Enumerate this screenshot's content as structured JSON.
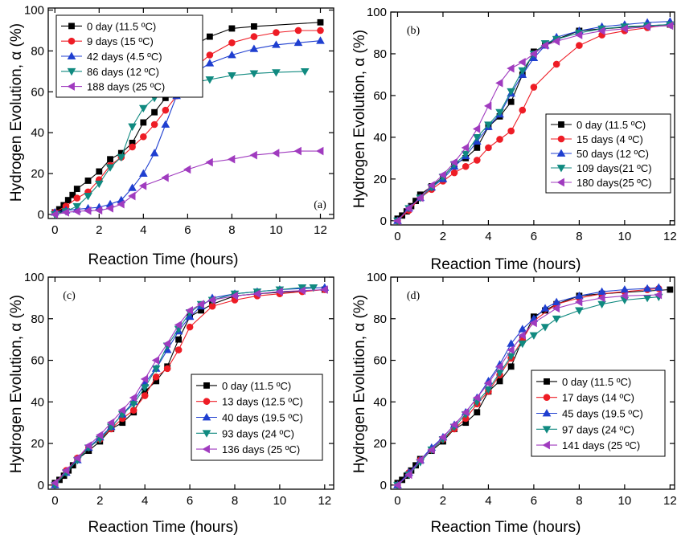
{
  "chart_data": [
    {
      "type": "line",
      "panel_label": "(a)",
      "xlabel": "Reaction Time (hours)",
      "ylabel": "Hydrogen Evolution, α (%)",
      "xlim": [
        -0.3,
        12.6
      ],
      "ylim": [
        -2,
        101
      ],
      "xticks": [
        0,
        2,
        4,
        6,
        8,
        10,
        12
      ],
      "yticks": [
        0,
        20,
        40,
        60,
        80,
        100
      ],
      "grid": false,
      "legend_position": "top-left",
      "series": [
        {
          "name": "0 day (11.5 ºC)",
          "color": "#000000",
          "marker": "square",
          "x": [
            0,
            0.2,
            0.4,
            0.6,
            0.8,
            1.0,
            1.5,
            2.0,
            2.5,
            3.0,
            3.5,
            4.0,
            4.5,
            5.0,
            5.5,
            6.0,
            6.5,
            7.0,
            8.0,
            9.0,
            12.0
          ],
          "y": [
            1,
            2.5,
            4.5,
            7,
            9.5,
            12.5,
            16.5,
            21,
            27,
            30,
            35,
            45,
            50,
            57,
            70,
            81,
            84,
            87,
            91,
            92,
            94
          ]
        },
        {
          "name": "9 days (15 ºC)",
          "color": "#ee1c25",
          "marker": "circle",
          "x": [
            0,
            0.5,
            1.0,
            1.5,
            2.0,
            2.5,
            3.0,
            3.5,
            4.0,
            4.5,
            5.0,
            5.5,
            6.0,
            7.0,
            8.0,
            9.0,
            10.0,
            11.0,
            12.0
          ],
          "y": [
            1,
            4,
            8,
            11,
            17,
            24,
            28,
            33,
            38,
            44,
            51,
            58,
            69,
            78,
            84,
            87,
            89,
            90,
            90
          ]
        },
        {
          "name": "42 days (4.5 ºC)",
          "color": "#1f3fd0",
          "marker": "triangle-up",
          "x": [
            0,
            0.5,
            1.0,
            1.5,
            2.0,
            2.5,
            3.0,
            3.5,
            4.0,
            4.5,
            5.0,
            5.5,
            6.0,
            7.0,
            8.0,
            9.0,
            10.0,
            11.0,
            12.0
          ],
          "y": [
            1,
            2,
            2.5,
            3,
            3.5,
            5,
            7,
            13,
            20,
            30,
            44,
            58,
            67,
            74,
            78,
            81,
            83,
            84,
            85
          ]
        },
        {
          "name": "86 days (12 ºC)",
          "color": "#108a80",
          "marker": "triangle-down",
          "x": [
            0,
            0.5,
            1.0,
            1.5,
            2.0,
            2.5,
            3.0,
            3.5,
            4.0,
            4.5,
            5.0,
            5.5,
            6.0,
            7.0,
            8.0,
            9.0,
            10.0,
            11.3
          ],
          "y": [
            0,
            1.5,
            4,
            9,
            15,
            23,
            28,
            43,
            52,
            57,
            60,
            62,
            64,
            66,
            68,
            69,
            69.5,
            70
          ]
        },
        {
          "name": "188 days (25 ºC)",
          "color": "#a03bbf",
          "marker": "triangle-left",
          "x": [
            0,
            0.5,
            1.0,
            1.5,
            2.0,
            2.5,
            3.0,
            3.5,
            4.0,
            5.0,
            6.0,
            7.0,
            8.0,
            9.0,
            10.0,
            11.0,
            12.0
          ],
          "y": [
            0,
            1,
            1.5,
            1.8,
            2,
            3,
            5,
            9,
            14,
            18,
            22,
            25.5,
            27,
            29,
            30,
            31,
            31
          ]
        }
      ]
    },
    {
      "type": "line",
      "panel_label": "(b)",
      "xlabel": "Reaction Time (hours)",
      "ylabel": "Hydrogen Evolution, α (%)",
      "xlim": [
        -0.3,
        12.2
      ],
      "ylim": [
        -2,
        100
      ],
      "xticks": [
        0,
        2,
        4,
        6,
        8,
        10,
        12
      ],
      "yticks": [
        0,
        20,
        40,
        60,
        80,
        100
      ],
      "grid": false,
      "legend_position": "middle-right",
      "series": [
        {
          "name": "0 day (11.5 ºC)",
          "color": "#000000",
          "marker": "square",
          "x": [
            0,
            0.2,
            0.4,
            0.6,
            0.8,
            1.0,
            1.5,
            2.0,
            2.5,
            3.0,
            3.5,
            4.0,
            4.5,
            5.0,
            5.5,
            6.0,
            6.5,
            7.0,
            8.0,
            9.0,
            12.0
          ],
          "y": [
            1,
            2.5,
            4.5,
            7,
            9.5,
            12.5,
            16.5,
            21,
            27,
            30,
            35,
            45,
            50,
            57,
            70,
            81,
            84,
            87,
            91,
            92,
            94
          ]
        },
        {
          "name": "15 days (4 ºC)",
          "color": "#ee1c25",
          "marker": "circle",
          "x": [
            0,
            0.5,
            1.0,
            1.5,
            2.0,
            2.5,
            3.0,
            3.5,
            4.0,
            4.5,
            5.0,
            5.5,
            6.0,
            7.0,
            8.0,
            9.0,
            10.0,
            11.0,
            12.0
          ],
          "y": [
            0,
            5,
            11,
            15,
            19,
            23,
            26,
            29,
            35,
            39,
            43,
            53,
            64,
            75,
            84,
            89,
            91,
            92.5,
            94
          ]
        },
        {
          "name": "50 days (12 ºC)",
          "color": "#1f3fd0",
          "marker": "triangle-up",
          "x": [
            0,
            0.5,
            1.0,
            1.5,
            2.0,
            2.5,
            3.0,
            3.5,
            4.0,
            4.5,
            5.0,
            5.5,
            6.0,
            6.5,
            7.0,
            8.0,
            9.0,
            10.0,
            11.0,
            12.0
          ],
          "y": [
            0,
            6,
            11,
            16,
            20,
            26,
            31,
            38,
            45,
            51,
            61,
            70,
            78,
            84,
            88,
            91,
            93,
            94,
            95,
            95.5
          ]
        },
        {
          "name": "109 days(21 ºC)",
          "color": "#108a80",
          "marker": "triangle-down",
          "x": [
            0,
            0.5,
            1.0,
            1.5,
            2.0,
            2.5,
            3.0,
            3.5,
            4.0,
            4.5,
            5.0,
            5.5,
            6.0,
            6.5,
            7.0,
            8.0,
            9.0,
            10.0,
            11.0,
            12.0
          ],
          "y": [
            0,
            6,
            11,
            16,
            21,
            27,
            32,
            40,
            46,
            52,
            62,
            72,
            80,
            85,
            87,
            90,
            92,
            93,
            93.5,
            94
          ]
        },
        {
          "name": "180 days(25 ºC)",
          "color": "#a03bbf",
          "marker": "triangle-left",
          "x": [
            0,
            0.5,
            1.0,
            1.5,
            2.0,
            2.5,
            3.0,
            3.5,
            4.0,
            4.5,
            5.0,
            5.5,
            6.0,
            6.5,
            7.0,
            8.0,
            9.0,
            10.0,
            11.0,
            12.0
          ],
          "y": [
            0,
            6,
            11,
            17,
            22,
            28,
            35,
            44,
            55,
            66,
            73,
            76,
            80,
            84,
            86,
            89,
            91,
            92,
            93,
            93.5
          ]
        }
      ]
    },
    {
      "type": "line",
      "panel_label": "(c)",
      "xlabel": "Reaction Time (hours)",
      "ylabel": "Hydrogen Evolution, α (%)",
      "xlim": [
        -0.3,
        12.4
      ],
      "ylim": [
        -2,
        100
      ],
      "xticks": [
        0,
        2,
        4,
        6,
        8,
        10,
        12
      ],
      "yticks": [
        0,
        20,
        40,
        60,
        80,
        100
      ],
      "grid": false,
      "legend_position": "bottom-right",
      "series": [
        {
          "name": "0 day (11.5 ºC)",
          "color": "#000000",
          "marker": "square",
          "x": [
            0,
            0.2,
            0.4,
            0.6,
            0.8,
            1.0,
            1.5,
            2.0,
            2.5,
            3.0,
            3.5,
            4.0,
            4.5,
            5.0,
            5.5,
            6.0,
            6.5,
            7.0,
            8.0,
            9.0,
            12.0
          ],
          "y": [
            1,
            2.5,
            4.5,
            7,
            9.5,
            12.5,
            16.5,
            21,
            27,
            30,
            35,
            45,
            50,
            57,
            70,
            81,
            84,
            87,
            91,
            92,
            94
          ]
        },
        {
          "name": "13 days (12.5 ºC)",
          "color": "#ee1c25",
          "marker": "circle",
          "x": [
            0,
            0.5,
            1.0,
            1.5,
            2.0,
            2.5,
            3.0,
            3.5,
            4.0,
            4.5,
            5.0,
            5.5,
            6.0,
            7.0,
            8.0,
            9.0,
            10.0,
            11.0,
            12.0
          ],
          "y": [
            0,
            7,
            13,
            18,
            22,
            27,
            32,
            36,
            43,
            52,
            56,
            65,
            76,
            86,
            89,
            91,
            92,
            93,
            94
          ]
        },
        {
          "name": "40 days (19.5 ºC)",
          "color": "#1f3fd0",
          "marker": "triangle-up",
          "x": [
            0,
            0.5,
            1.0,
            1.5,
            2.0,
            2.5,
            3.0,
            3.5,
            4.0,
            4.5,
            5.0,
            5.5,
            6.0,
            6.5,
            7.0,
            8.0,
            9.0,
            10.0,
            11.0,
            12.0
          ],
          "y": [
            0,
            6,
            12,
            18,
            23,
            28,
            34,
            40,
            49,
            56,
            65,
            74,
            81,
            86,
            90,
            92,
            93,
            94,
            94.5,
            95
          ]
        },
        {
          "name": "93 days (24 ºC)",
          "color": "#108a80",
          "marker": "triangle-down",
          "x": [
            0,
            0.5,
            1.0,
            1.5,
            2.0,
            2.5,
            3.0,
            3.5,
            4.0,
            4.5,
            5.0,
            5.5,
            6.0,
            6.5,
            7.0,
            8.0,
            9.0,
            10.0,
            11.0,
            11.5
          ],
          "y": [
            0,
            6,
            12,
            18,
            22,
            28,
            34,
            39,
            47,
            56,
            67,
            75,
            83,
            87,
            89,
            92,
            93,
            94,
            95,
            95
          ]
        },
        {
          "name": "136 days (25 ºC)",
          "color": "#a03bbf",
          "marker": "triangle-left",
          "x": [
            0,
            0.5,
            1.0,
            1.5,
            2.0,
            2.5,
            3.0,
            3.5,
            4.0,
            4.5,
            5.0,
            5.5,
            6.0,
            6.5,
            7.0,
            8.0,
            9.0,
            10.0,
            11.0,
            12.0
          ],
          "y": [
            1,
            7,
            13,
            19,
            24,
            30,
            36,
            42,
            51,
            60,
            68,
            77,
            84,
            87,
            89,
            91,
            92,
            93,
            93.5,
            94
          ]
        }
      ]
    },
    {
      "type": "line",
      "panel_label": "(d)",
      "xlabel": "Reaction Time (hours)",
      "ylabel": "Hydrogen Evolution, α (%)",
      "xlim": [
        -0.3,
        12.2
      ],
      "ylim": [
        -2,
        100
      ],
      "xticks": [
        0,
        2,
        4,
        6,
        8,
        10,
        12
      ],
      "yticks": [
        0,
        20,
        40,
        60,
        80,
        100
      ],
      "grid": false,
      "legend_position": "bottom-right",
      "series": [
        {
          "name": "0 day (11.5 ºC)",
          "color": "#000000",
          "marker": "square",
          "x": [
            0,
            0.2,
            0.4,
            0.6,
            0.8,
            1.0,
            1.5,
            2.0,
            2.5,
            3.0,
            3.5,
            4.0,
            4.5,
            5.0,
            5.5,
            6.0,
            6.5,
            7.0,
            8.0,
            9.0,
            12.0
          ],
          "y": [
            1,
            2.5,
            4.5,
            7,
            9.5,
            12.5,
            16.5,
            21,
            27,
            30,
            35,
            45,
            50,
            57,
            70,
            81,
            84,
            87,
            91,
            92,
            94
          ]
        },
        {
          "name": "17 days (14 ºC)",
          "color": "#ee1c25",
          "marker": "circle",
          "x": [
            0,
            0.5,
            1.0,
            1.5,
            2.0,
            2.5,
            3.0,
            3.5,
            4.0,
            4.5,
            5.0,
            5.5,
            6.0,
            7.0,
            8.0,
            9.0,
            10.0,
            11.0,
            11.5
          ],
          "y": [
            0,
            6,
            12,
            17,
            22,
            27,
            32,
            39,
            45,
            53,
            61,
            70,
            79,
            87,
            90,
            92,
            93,
            94,
            94.5
          ]
        },
        {
          "name": "45 days (19.5 ºC)",
          "color": "#1f3fd0",
          "marker": "triangle-up",
          "x": [
            0,
            0.5,
            1.0,
            1.5,
            2.0,
            2.5,
            3.0,
            3.5,
            4.0,
            4.5,
            5.0,
            5.5,
            6.0,
            6.5,
            7.0,
            8.0,
            9.0,
            10.0,
            11.0,
            11.5
          ],
          "y": [
            0,
            6,
            12,
            18,
            23,
            29,
            35,
            42,
            50,
            58,
            68,
            75,
            80,
            85,
            88,
            91,
            93,
            94,
            94.5,
            95
          ]
        },
        {
          "name": "97 days (24 ºC)",
          "color": "#108a80",
          "marker": "triangle-down",
          "x": [
            0,
            0.5,
            1.0,
            1.5,
            2.0,
            2.5,
            3.0,
            3.5,
            4.0,
            4.5,
            5.0,
            5.5,
            6.0,
            6.5,
            7.0,
            8.0,
            9.0,
            10.0,
            11.0,
            11.5
          ],
          "y": [
            0,
            5,
            11,
            17,
            22,
            28,
            34,
            40,
            46,
            54,
            62,
            68,
            72,
            76,
            80,
            84,
            87,
            89,
            90,
            90.5
          ]
        },
        {
          "name": "141 days (25 ºC)",
          "color": "#a03bbf",
          "marker": "triangle-left",
          "x": [
            0,
            0.5,
            1.0,
            1.5,
            2.0,
            2.5,
            3.0,
            3.5,
            4.0,
            4.5,
            5.0,
            5.5,
            6.0,
            7.0,
            8.0,
            9.0,
            10.0,
            11.5
          ],
          "y": [
            0,
            5,
            12,
            17,
            23,
            29,
            35,
            42,
            49,
            57,
            65,
            72,
            78,
            85,
            88,
            90,
            91,
            91.5
          ]
        }
      ]
    }
  ]
}
